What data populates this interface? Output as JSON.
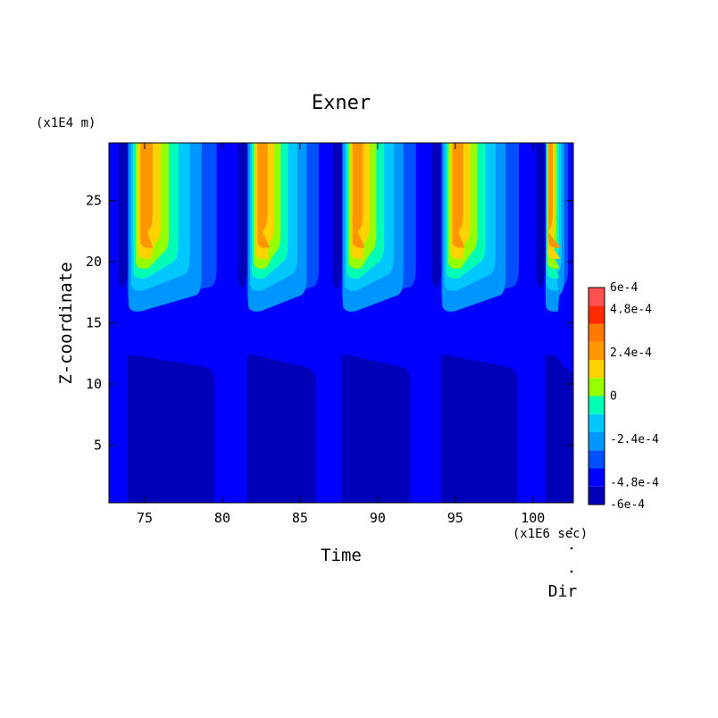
{
  "chart_data": {
    "type": "heatmap",
    "title": "Exner",
    "xlabel": "Time",
    "ylabel": "Z-coordinate",
    "x_unit_label": "(x1E6 sec)",
    "y_unit_label": "(x1E4 m)",
    "xlim": [
      72.7,
      102.6
    ],
    "ylim": [
      0.3,
      29.7
    ],
    "x_ticks": [
      75,
      80,
      85,
      90,
      95,
      100
    ],
    "y_ticks": [
      5,
      10,
      15,
      20,
      25
    ],
    "grid": false,
    "colorbar": {
      "range": [
        -0.0006,
        0.0006
      ],
      "levels": 12,
      "tick_values": [
        0.0006,
        0.00048,
        0.00024,
        0,
        -0.00024,
        -0.00048,
        -0.0006
      ],
      "tick_labels": [
        "6e-4",
        "4.8e-4",
        "2.4e-4",
        "0",
        "-2.4e-4",
        "-4.8e-4",
        "-6e-4"
      ],
      "colors": [
        "#0000b8",
        "#0000ff",
        "#0050ff",
        "#0096ff",
        "#00c8ff",
        "#00ffb4",
        "#96ff00",
        "#ffd200",
        "#ff9600",
        "#ff7800",
        "#ff2800",
        "#ff5050"
      ]
    },
    "cycles": [
      {
        "start": 73.9,
        "end": 81.4,
        "inner_end": 79.5
      },
      {
        "start": 81.6,
        "end": 87.6,
        "inner_end": 86.0
      },
      {
        "start": 87.7,
        "end": 93.9,
        "inner_end": 92.1
      },
      {
        "start": 94.1,
        "end": 100.6,
        "inner_end": 99.0
      },
      {
        "start": 100.8,
        "end": 102.6,
        "inner_end": 102.6
      }
    ],
    "dir_label": "Dir"
  }
}
